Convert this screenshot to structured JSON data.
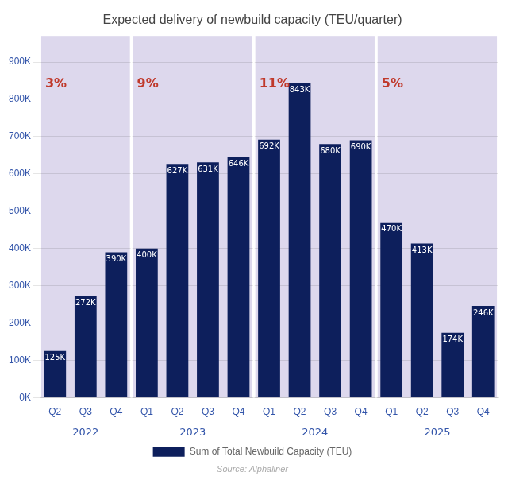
{
  "chart_data": {
    "type": "bar",
    "title": "Expected delivery of newbuild capacity (TEU/quarter)",
    "source": "Source: Alphaliner",
    "categories": [
      "Q2",
      "Q3",
      "Q4",
      "Q1",
      "Q2",
      "Q3",
      "Q4",
      "Q1",
      "Q2",
      "Q3",
      "Q4",
      "Q1",
      "Q2",
      "Q3",
      "Q4"
    ],
    "series": [
      {
        "name": "Sum of Total Newbuild Capacity (TEU)",
        "color": "#0d1f5c",
        "values": [
          125000,
          272000,
          390000,
          400000,
          627000,
          631000,
          646000,
          692000,
          843000,
          680000,
          690000,
          470000,
          413000,
          174000,
          246000
        ],
        "value_labels": [
          "125K",
          "272K",
          "390K",
          "400K",
          "627K",
          "631K",
          "646K",
          "692K",
          "843K",
          "680K",
          "690K",
          "470K",
          "413K",
          "174K",
          "246K"
        ]
      }
    ],
    "groups": [
      {
        "label": "2022",
        "start": 0,
        "end": 2,
        "annotation": "3%"
      },
      {
        "label": "2023",
        "start": 3,
        "end": 6,
        "annotation": "9%"
      },
      {
        "label": "2024",
        "start": 7,
        "end": 10,
        "annotation": "11%"
      },
      {
        "label": "2025",
        "start": 11,
        "end": 14,
        "annotation": "5%"
      }
    ],
    "ylim": [
      0,
      970000
    ],
    "yticks": [
      {
        "value": 0,
        "label": "0K"
      },
      {
        "value": 100000,
        "label": "100K"
      },
      {
        "value": 200000,
        "label": "200K"
      },
      {
        "value": 300000,
        "label": "300K"
      },
      {
        "value": 400000,
        "label": "400K"
      },
      {
        "value": 500000,
        "label": "500K"
      },
      {
        "value": 600000,
        "label": "600K"
      },
      {
        "value": 700000,
        "label": "700K"
      },
      {
        "value": 800000,
        "label": "800K"
      },
      {
        "value": 900000,
        "label": "900K"
      }
    ],
    "grid": true,
    "legend": "bottom",
    "data_labels": true
  }
}
